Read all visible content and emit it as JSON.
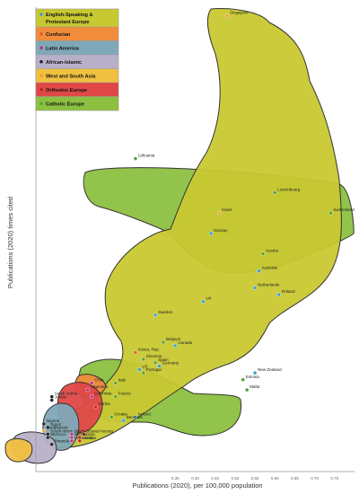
{
  "chart_data": {
    "type": "scatter",
    "xlabel": "Publications (2020), per 100,000 population",
    "ylabel": "Publications (2020) times cited",
    "xlim": [
      0,
      0.8
    ],
    "ylim": [
      0,
      6.8
    ],
    "x_ticks": [
      "0.35",
      "0.40",
      "0.45",
      "0.50",
      "0.55",
      "0.60",
      "0.65",
      "0.70",
      "0.75"
    ],
    "grid": false,
    "legend_position": "top-left",
    "legend": [
      {
        "name": "English-Speaking & Protestant Europe",
        "color": "#c8c832",
        "dot": "#3aa0c8"
      },
      {
        "name": "Confucian",
        "color": "#f08c3c",
        "dot": "#e06020"
      },
      {
        "name": "Latin America",
        "color": "#7fa8b8",
        "dot": "#c03080"
      },
      {
        "name": "African-Islamic",
        "color": "#b8b0c8",
        "dot": "#222222"
      },
      {
        "name": "West and South Asia",
        "color": "#f0c040",
        "dot": "#f0a030"
      },
      {
        "name": "Orthodox Europe",
        "color": "#e04848",
        "dot": "#c02020"
      },
      {
        "name": "Catholic Europe",
        "color": "#8cc040",
        "dot": "#5aa030"
      }
    ],
    "points": [
      {
        "label": "Singapore",
        "x": 0.48,
        "y": 6.7,
        "group": "West and South Asia"
      },
      {
        "label": "Lithuania",
        "x": 0.25,
        "y": 4.6,
        "group": "Catholic Europe"
      },
      {
        "label": "Luxembourg",
        "x": 0.6,
        "y": 4.1,
        "group": "Catholic Europe"
      },
      {
        "label": "Switzerland",
        "x": 0.74,
        "y": 3.8,
        "group": "Catholic Europe"
      },
      {
        "label": "Israel",
        "x": 0.46,
        "y": 3.8,
        "group": "West and South Asia"
      },
      {
        "label": "Norway",
        "x": 0.44,
        "y": 3.5,
        "group": "English-Speaking & Protestant Europe"
      },
      {
        "label": "Austria",
        "x": 0.57,
        "y": 3.2,
        "group": "Catholic Europe"
      },
      {
        "label": "Australia",
        "x": 0.56,
        "y": 2.95,
        "group": "English-Speaking & Protestant Europe"
      },
      {
        "label": "Netherlands",
        "x": 0.55,
        "y": 2.7,
        "group": "English-Speaking & Protestant Europe"
      },
      {
        "label": "Finland",
        "x": 0.61,
        "y": 2.6,
        "group": "English-Speaking & Protestant Europe"
      },
      {
        "label": "UK",
        "x": 0.42,
        "y": 2.5,
        "group": "English-Speaking & Protestant Europe"
      },
      {
        "label": "Sweden",
        "x": 0.3,
        "y": 2.3,
        "group": "English-Speaking & Protestant Europe"
      },
      {
        "label": "Belgium",
        "x": 0.32,
        "y": 1.9,
        "group": "Catholic Europe"
      },
      {
        "label": "Canada",
        "x": 0.35,
        "y": 1.85,
        "group": "English-Speaking & Protestant Europe"
      },
      {
        "label": "Korea, Rep.",
        "x": 0.25,
        "y": 1.75,
        "group": "Confucian"
      },
      {
        "label": "Slovenia",
        "x": 0.27,
        "y": 1.65,
        "group": "Catholic Europe"
      },
      {
        "label": "Spain",
        "x": 0.3,
        "y": 1.6,
        "group": "Catholic Europe"
      },
      {
        "label": "Germany",
        "x": 0.31,
        "y": 1.55,
        "group": "English-Speaking & Protestant Europe"
      },
      {
        "label": "US",
        "x": 0.26,
        "y": 1.5,
        "group": "English-Speaking & Protestant Europe"
      },
      {
        "label": "Portugal",
        "x": 0.27,
        "y": 1.45,
        "group": "Catholic Europe"
      },
      {
        "label": "Italy",
        "x": 0.2,
        "y": 1.3,
        "group": "Catholic Europe"
      },
      {
        "label": "New Zealand",
        "x": 0.55,
        "y": 1.45,
        "group": "English-Speaking & Protestant Europe"
      },
      {
        "label": "Estonia",
        "x": 0.52,
        "y": 1.35,
        "group": "Catholic Europe"
      },
      {
        "label": "Malta",
        "x": 0.53,
        "y": 1.2,
        "group": "Catholic Europe"
      },
      {
        "label": "Chile",
        "x": 0.14,
        "y": 1.3,
        "group": "Latin America"
      },
      {
        "label": "Argentina",
        "x": 0.13,
        "y": 1.2,
        "group": "Latin America"
      },
      {
        "label": "Colombia",
        "x": 0.14,
        "y": 1.1,
        "group": "Latin America"
      },
      {
        "label": "France",
        "x": 0.2,
        "y": 1.1,
        "group": "Catholic Europe"
      },
      {
        "label": "Serbia",
        "x": 0.15,
        "y": 0.95,
        "group": "Orthodox Europe"
      },
      {
        "label": "Ireland",
        "x": 0.25,
        "y": 0.8,
        "group": "English-Speaking & Protestant Europe"
      },
      {
        "label": "Denmark",
        "x": 0.22,
        "y": 0.75,
        "group": "English-Speaking & Protestant Europe"
      },
      {
        "label": "Croatia",
        "x": 0.19,
        "y": 0.8,
        "group": "Catholic Europe"
      },
      {
        "label": "Saudi Arabia",
        "x": 0.04,
        "y": 1.1,
        "group": "African-Islamic"
      },
      {
        "label": "Jordan",
        "x": 0.04,
        "y": 1.05,
        "group": "African-Islamic"
      },
      {
        "label": "Nigeria",
        "x": 0.02,
        "y": 0.7,
        "group": "African-Islamic"
      },
      {
        "label": "Egypt",
        "x": 0.03,
        "y": 0.65,
        "group": "African-Islamic"
      },
      {
        "label": "Bangladesh",
        "x": 0.02,
        "y": 0.6,
        "group": "West and South Asia"
      },
      {
        "label": "South Africa",
        "x": 0.03,
        "y": 0.55,
        "group": "African-Islamic"
      },
      {
        "label": "Morocco",
        "x": 0.03,
        "y": 0.5,
        "group": "African-Islamic"
      },
      {
        "label": "Rwanda",
        "x": 0.04,
        "y": 0.4,
        "group": "African-Islamic"
      },
      {
        "label": "Brazil",
        "x": 0.09,
        "y": 0.55,
        "group": "Latin America"
      },
      {
        "label": "Mexico",
        "x": 0.09,
        "y": 0.5,
        "group": "Latin America"
      },
      {
        "label": "Venezuela",
        "x": 0.09,
        "y": 0.45,
        "group": "Latin America"
      },
      {
        "label": "Bosnia Herzeg.",
        "x": 0.12,
        "y": 0.55,
        "group": "Orthodox Europe"
      },
      {
        "label": "Russia",
        "x": 0.11,
        "y": 0.5,
        "group": "Orthodox Europe"
      },
      {
        "label": "Ukraine",
        "x": 0.11,
        "y": 0.45,
        "group": "Orthodox Europe"
      }
    ]
  }
}
